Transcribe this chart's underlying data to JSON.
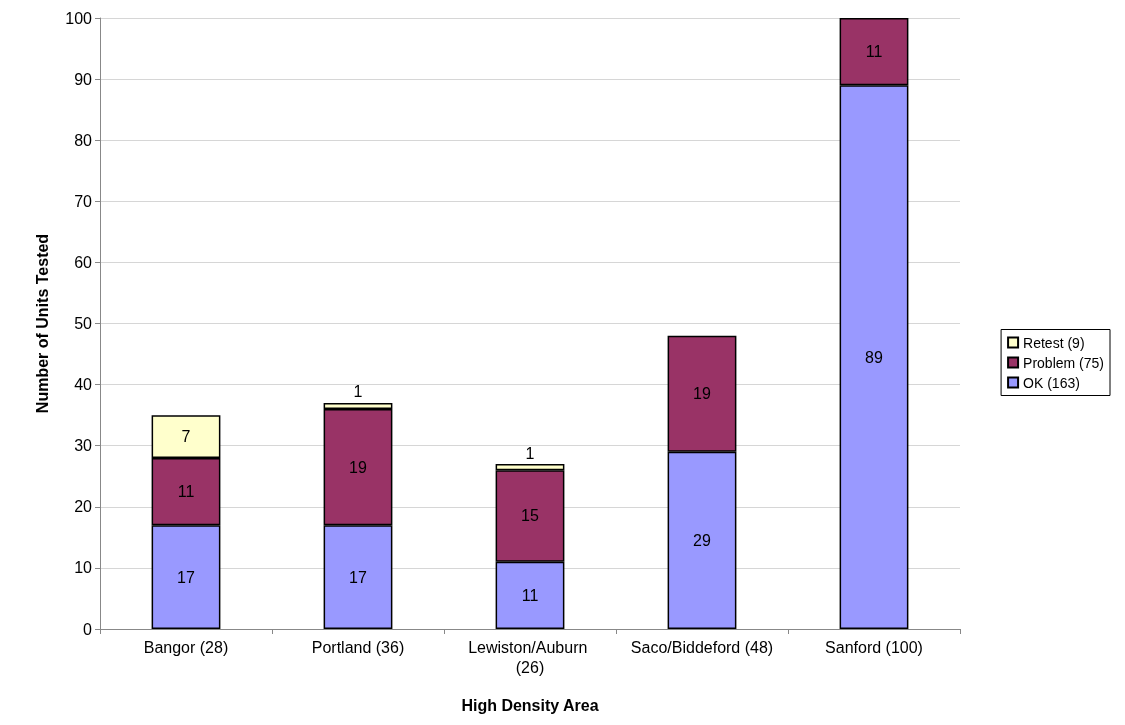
{
  "chart_data": {
    "type": "bar",
    "stacked": true,
    "xlabel": "High Density Area",
    "ylabel": "Number of Units Tested",
    "categories": [
      "Bangor (28)",
      "Portland (36)",
      "Lewiston/Auburn (26)",
      "Saco/Biddeford (48)",
      "Sanford (100)"
    ],
    "series": [
      {
        "name": "OK (163)",
        "color": "#9999ff",
        "values": [
          17,
          17,
          11,
          29,
          89
        ]
      },
      {
        "name": "Problem (75)",
        "color": "#993366",
        "values": [
          11,
          19,
          15,
          19,
          11
        ]
      },
      {
        "name": "Retest (9)",
        "color": "#ffffcc",
        "values": [
          7,
          1,
          1,
          null,
          null
        ]
      }
    ],
    "ylim": [
      0,
      100
    ],
    "yticks": [
      0,
      10,
      20,
      30,
      40,
      50,
      60,
      70,
      80,
      90,
      100
    ],
    "grid": "y",
    "legend": "right",
    "data_labels": true
  }
}
